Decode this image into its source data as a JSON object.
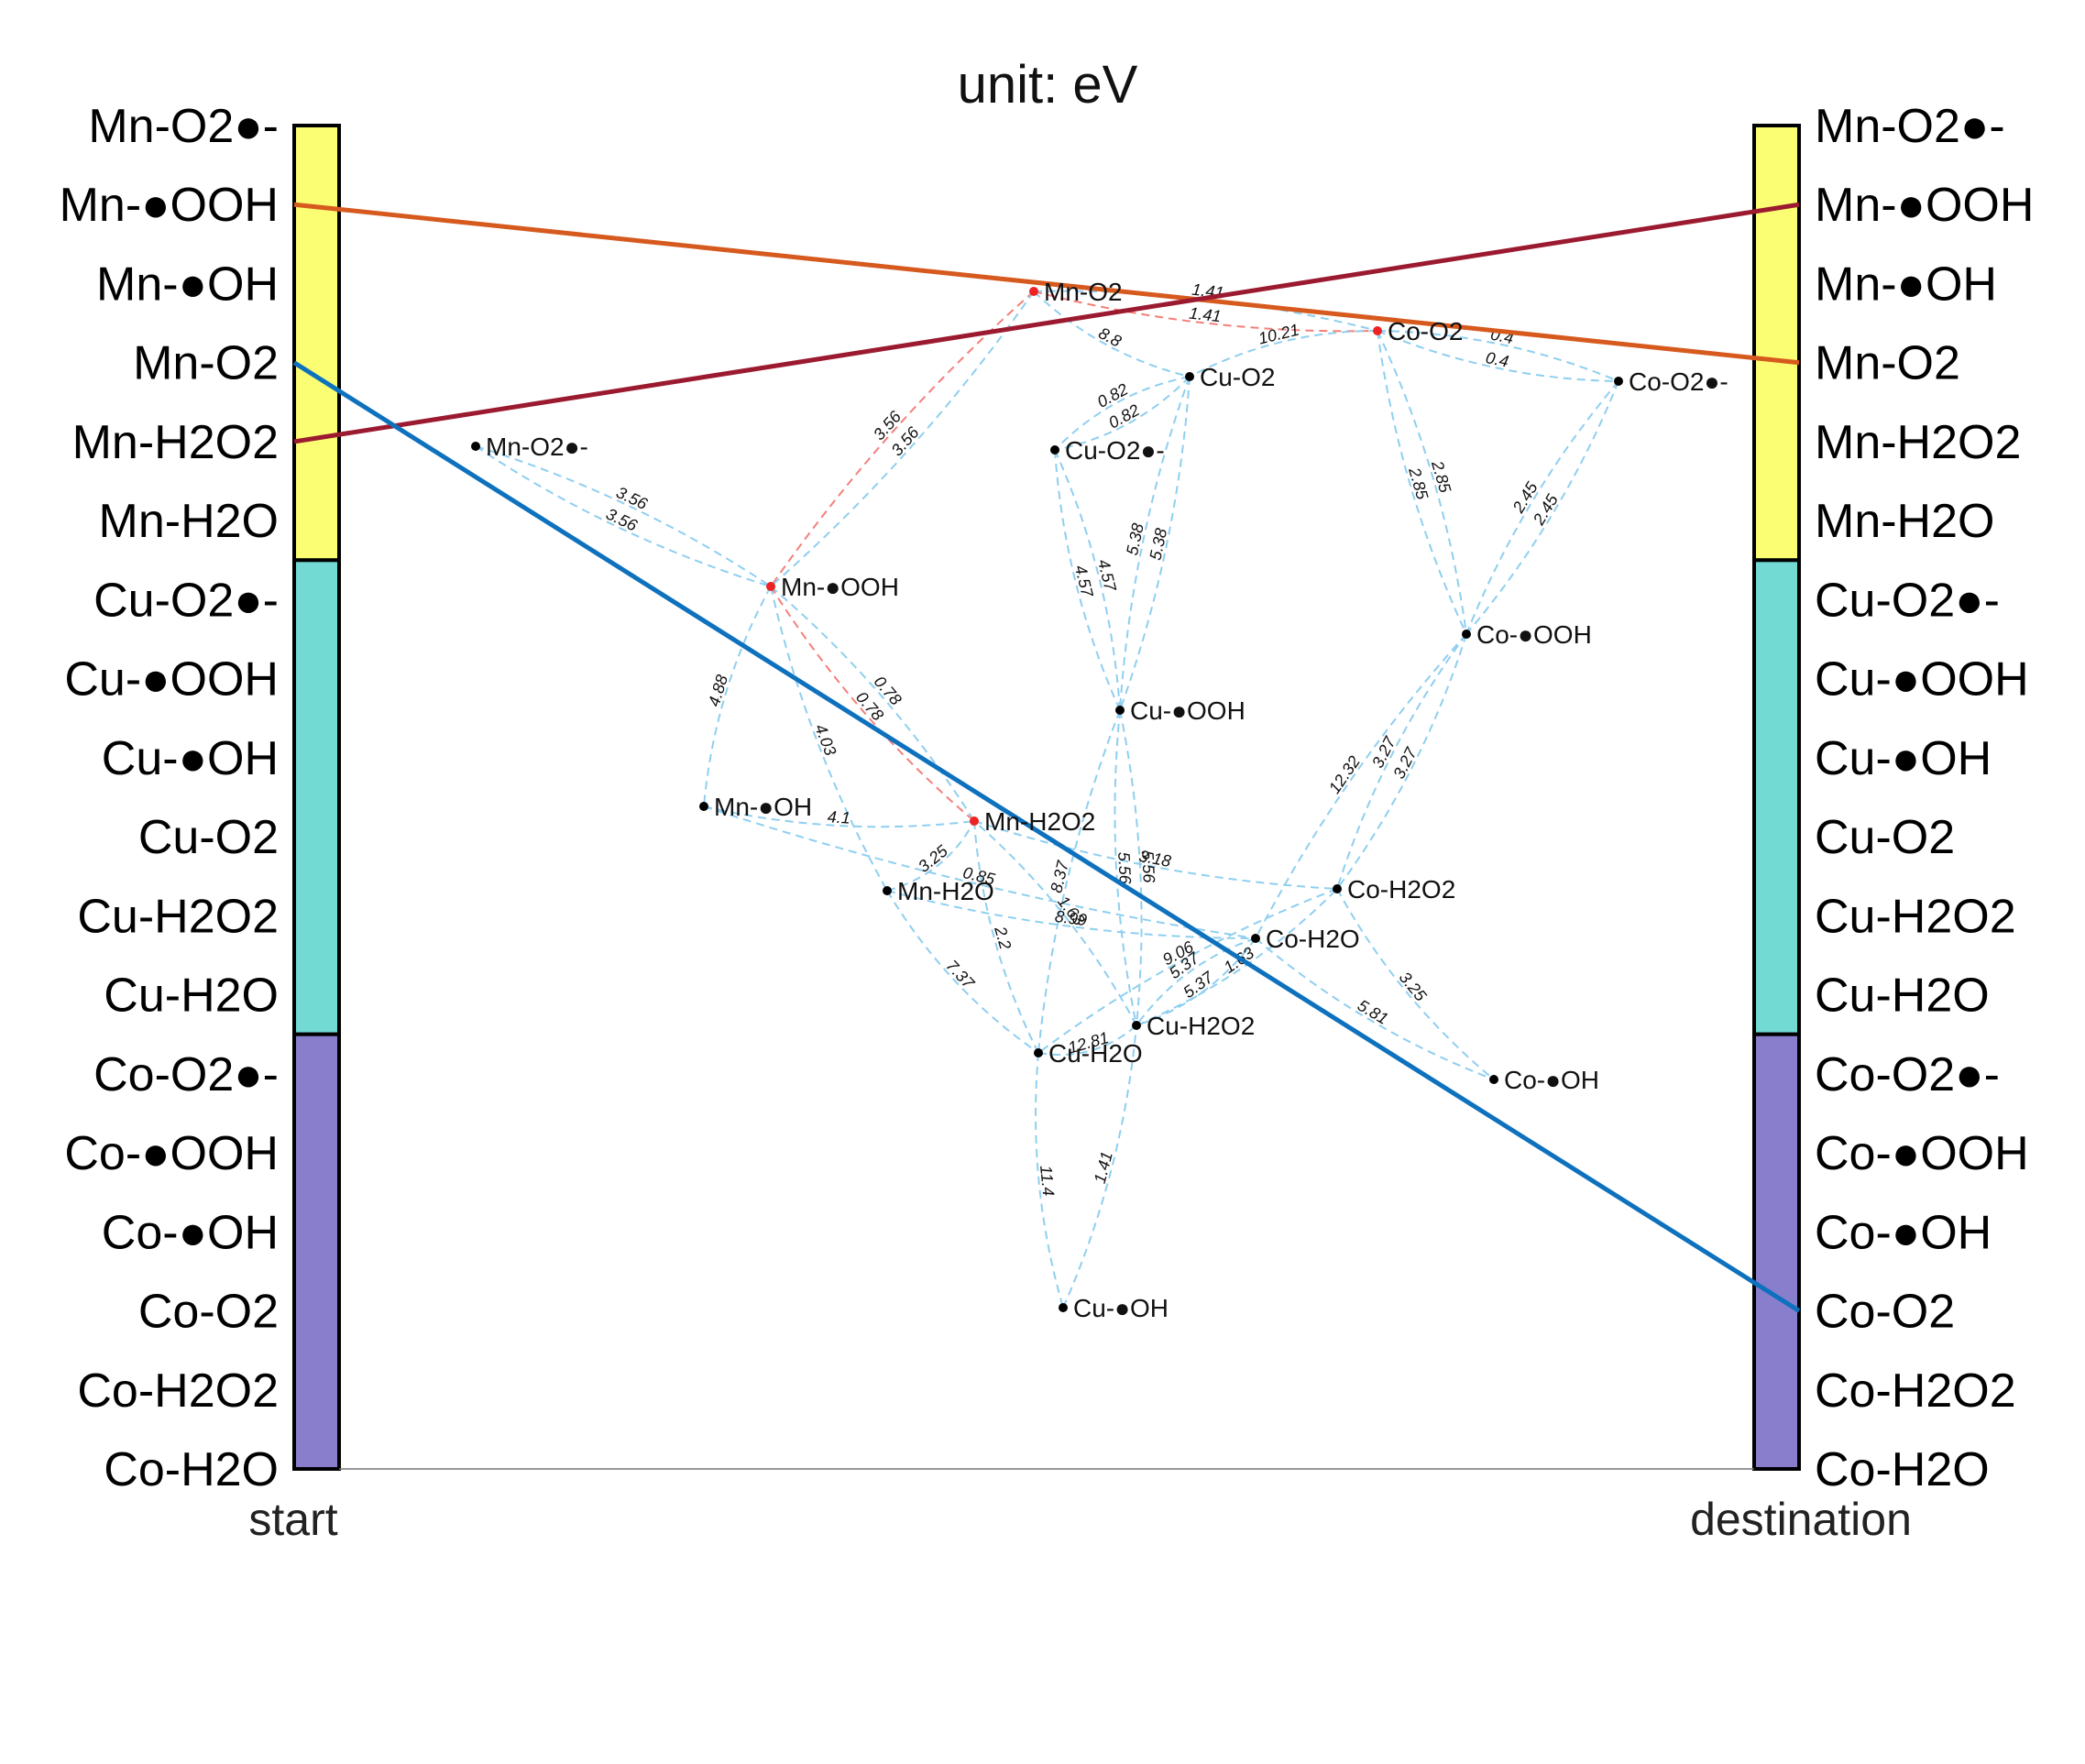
{
  "title": "unit: eV",
  "bottom_labels": {
    "start": "start",
    "destination": "destination"
  },
  "colors": {
    "Mn": "#fbfd72",
    "Cu": "#73d9d3",
    "Co": "#897ecb",
    "edge": "#8fcff0",
    "highlight_edge": "#f3807a",
    "node": "#000000",
    "node_highlight": "#ee2222",
    "path_Mn_H2O2_to_Mn_OOH": "#9b1a30",
    "path_Mn_OOH_to_Mn_O2": "#d65a1e",
    "path_Mn_O2_to_Co_O2": "#0e71bd"
  },
  "groups": [
    {
      "name": "Mn",
      "color_key": "Mn"
    },
    {
      "name": "Cu",
      "color_key": "Cu"
    },
    {
      "name": "Co",
      "color_key": "Co"
    }
  ],
  "species": [
    "Mn-O2●-",
    "Mn-●OOH",
    "Mn-●OH",
    "Mn-O2",
    "Mn-H2O2",
    "Mn-H2O",
    "Cu-O2●-",
    "Cu-●OOH",
    "Cu-●OH",
    "Cu-O2",
    "Cu-H2O2",
    "Cu-H2O",
    "Co-O2●-",
    "Co-●OOH",
    "Co-●OH",
    "Co-O2",
    "Co-H2O2",
    "Co-H2O"
  ],
  "paths": [
    {
      "from": "Mn-●OOH",
      "to": "Mn-O2",
      "color_key": "path_Mn_OOH_to_Mn_O2"
    },
    {
      "from": "Mn-H2O2",
      "to": "Mn-●OOH",
      "color_key": "path_Mn_H2O2_to_Mn_OOH"
    },
    {
      "from": "Mn-O2",
      "to": "Co-O2",
      "color_key": "path_Mn_O2_to_Co_O2"
    }
  ],
  "nodes": [
    {
      "id": "Mn-O2",
      "label": "Mn-O2",
      "highlight": true
    },
    {
      "id": "Co-O2",
      "label": "Co-O2",
      "highlight": true
    },
    {
      "id": "Cu-O2",
      "label": "Cu-O2",
      "highlight": false
    },
    {
      "id": "Co-O2●-",
      "label": "Co-O2●-",
      "highlight": false
    },
    {
      "id": "Mn-O2●-",
      "label": "Mn-O2●-",
      "highlight": false
    },
    {
      "id": "Cu-O2●-",
      "label": "Cu-O2●-",
      "highlight": false
    },
    {
      "id": "Mn-●OOH",
      "label": "Mn-●OOH",
      "highlight": true
    },
    {
      "id": "Co-●OOH",
      "label": "Co-●OOH",
      "highlight": false
    },
    {
      "id": "Cu-●OOH",
      "label": "Cu-●OOH",
      "highlight": false
    },
    {
      "id": "Mn-●OH",
      "label": "Mn-●OH",
      "highlight": false
    },
    {
      "id": "Mn-H2O2",
      "label": "Mn-H2O2",
      "highlight": true
    },
    {
      "id": "Co-H2O2",
      "label": "Co-H2O2",
      "highlight": false
    },
    {
      "id": "Mn-H2O",
      "label": "Mn-H2O",
      "highlight": false
    },
    {
      "id": "Co-H2O",
      "label": "Co-H2O",
      "highlight": false
    },
    {
      "id": "Cu-H2O2",
      "label": "Cu-H2O2",
      "highlight": false
    },
    {
      "id": "Cu-H2O",
      "label": "Cu-H2O",
      "highlight": false
    },
    {
      "id": "Co-●OH",
      "label": "Co-●OH",
      "highlight": false
    },
    {
      "id": "Cu-●OH",
      "label": "Cu-●OH",
      "highlight": false
    }
  ],
  "edges": [
    {
      "a": "Mn-O2",
      "b": "Co-O2",
      "label": "1.41",
      "highlight": true
    },
    {
      "a": "Mn-O2",
      "b": "Co-O2",
      "label": "1.41",
      "highlight": false
    },
    {
      "a": "Mn-O2",
      "b": "Cu-O2",
      "label": "8.8",
      "highlight": false
    },
    {
      "a": "Mn-O2",
      "b": "Mn-●OOH",
      "label": "3.56",
      "highlight": true
    },
    {
      "a": "Mn-O2",
      "b": "Mn-●OOH",
      "label": "3.56",
      "highlight": false
    },
    {
      "a": "Co-O2",
      "b": "Cu-O2",
      "label": "10.21",
      "highlight": false
    },
    {
      "a": "Co-O2",
      "b": "Co-O2●-",
      "label": "0.4",
      "highlight": false
    },
    {
      "a": "Co-O2",
      "b": "Co-O2●-",
      "label": "0.4",
      "highlight": false
    },
    {
      "a": "Co-O2",
      "b": "Co-●OOH",
      "label": "2.85",
      "highlight": false
    },
    {
      "a": "Co-O2",
      "b": "Co-●OOH",
      "label": "2.85",
      "highlight": false
    },
    {
      "a": "Co-O2●-",
      "b": "Co-●OOH",
      "label": "2.45",
      "highlight": false
    },
    {
      "a": "Co-O2●-",
      "b": "Co-●OOH",
      "label": "2.45",
      "highlight": false
    },
    {
      "a": "Cu-O2",
      "b": "Cu-O2●-",
      "label": "0.82",
      "highlight": false
    },
    {
      "a": "Cu-O2",
      "b": "Cu-O2●-",
      "label": "0.82",
      "highlight": false
    },
    {
      "a": "Cu-O2",
      "b": "Cu-●OOH",
      "label": "5.38",
      "highlight": false
    },
    {
      "a": "Cu-O2",
      "b": "Cu-●OOH",
      "label": "5.38",
      "highlight": false
    },
    {
      "a": "Cu-O2●-",
      "b": "Cu-●OOH",
      "label": "4.57",
      "highlight": false
    },
    {
      "a": "Cu-O2●-",
      "b": "Cu-●OOH",
      "label": "4.57",
      "highlight": false
    },
    {
      "a": "Mn-O2●-",
      "b": "Mn-●OOH",
      "label": "3.56",
      "highlight": false
    },
    {
      "a": "Mn-O2●-",
      "b": "Mn-●OOH",
      "label": "3.56",
      "highlight": false
    },
    {
      "a": "Mn-●OOH",
      "b": "Mn-H2O2",
      "label": "0.78",
      "highlight": true
    },
    {
      "a": "Mn-●OOH",
      "b": "Mn-H2O2",
      "label": "0.78",
      "highlight": false
    },
    {
      "a": "Mn-●OOH",
      "b": "Mn-●OH",
      "label": "4.88",
      "highlight": false
    },
    {
      "a": "Mn-●OOH",
      "b": "Mn-H2O",
      "label": "4.03",
      "highlight": false
    },
    {
      "a": "Mn-●OH",
      "b": "Mn-H2O2",
      "label": "4.1",
      "highlight": false
    },
    {
      "a": "Mn-●OH",
      "b": "Co-H2O",
      "label": "0.85",
      "highlight": false
    },
    {
      "a": "Mn-H2O",
      "b": "Mn-H2O2",
      "label": "3.25",
      "highlight": false
    },
    {
      "a": "Mn-H2O",
      "b": "Cu-H2O",
      "label": "7.37",
      "highlight": false
    },
    {
      "a": "Mn-H2O2",
      "b": "Co-H2O2",
      "label": "3.18",
      "highlight": false
    },
    {
      "a": "Mn-H2O2",
      "b": "Cu-H2O",
      "label": "2.2",
      "highlight": false
    },
    {
      "a": "Cu-●OOH",
      "b": "Cu-H2O2",
      "label": "5.56",
      "highlight": false
    },
    {
      "a": "Cu-●OOH",
      "b": "Cu-H2O2",
      "label": "5.56",
      "highlight": false
    },
    {
      "a": "Cu-●OOH",
      "b": "Cu-H2O",
      "label": "8.37",
      "highlight": false
    },
    {
      "a": "Co-●OOH",
      "b": "Co-H2O",
      "label": "12.32",
      "highlight": false
    },
    {
      "a": "Co-●OOH",
      "b": "Co-H2O2",
      "label": "3.27",
      "highlight": false
    },
    {
      "a": "Co-●OOH",
      "b": "Co-H2O2",
      "label": "3.27",
      "highlight": false
    },
    {
      "a": "Co-H2O2",
      "b": "Cu-H2O",
      "label": "9.06",
      "highlight": false
    },
    {
      "a": "Co-H2O2",
      "b": "Co-●OH",
      "label": "3.25",
      "highlight": false
    },
    {
      "a": "Co-H2O",
      "b": "Cu-H2O2",
      "label": "5.37",
      "highlight": false
    },
    {
      "a": "Co-H2O",
      "b": "Cu-H2O2",
      "label": "5.37",
      "highlight": false
    },
    {
      "a": "Co-H2O",
      "b": "Co-●OH",
      "label": "5.81",
      "highlight": false
    },
    {
      "a": "Mn-H2O",
      "b": "Co-H2O",
      "label": "8.99",
      "highlight": false
    },
    {
      "a": "Cu-H2O2",
      "b": "Mn-H2O2",
      "label": "1.63",
      "highlight": false
    },
    {
      "a": "Cu-H2O2",
      "b": "Co-H2O2",
      "label": "1.63",
      "highlight": false
    },
    {
      "a": "Cu-H2O",
      "b": "Cu-H2O2",
      "label": "12.81",
      "highlight": false
    },
    {
      "a": "Cu-H2O",
      "b": "Cu-●OH",
      "label": "11.4",
      "highlight": false
    },
    {
      "a": "Cu-●OH",
      "b": "Cu-H2O2",
      "label": "1.41",
      "highlight": false
    }
  ]
}
